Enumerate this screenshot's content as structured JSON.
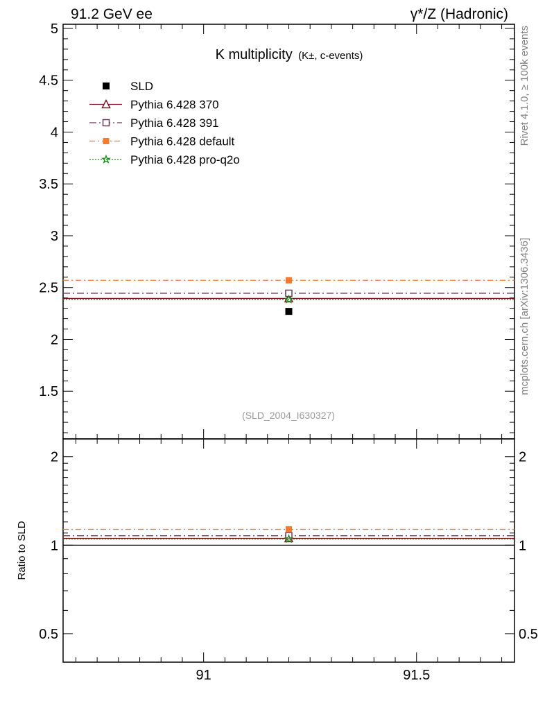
{
  "header": {
    "left": "91.2 GeV ee",
    "right": "γ*/Z (Hadronic)"
  },
  "side_labels": {
    "rivet": "Rivet 4.1.0, ≥ 100k events",
    "mcplots": "mcplots.cern.ch [arXiv:1306.3436]"
  },
  "chart_data": {
    "type": "scatter",
    "title_main": "K multiplicity",
    "title_sub": "(K±, c-events)",
    "analysis_label": "(SLD_2004_I630327)",
    "x": [
      91.2
    ],
    "xlim": [
      90.67,
      91.73
    ],
    "x_ticks": [
      "91",
      "91.5"
    ],
    "x_tick_values": [
      91,
      91.5
    ],
    "main": {
      "ylim": [
        1.04,
        5.04
      ],
      "y_ticks": [
        "1.5",
        "2",
        "2.5",
        "3",
        "3.5",
        "4",
        "4.5",
        "5"
      ],
      "y_tick_values": [
        1.5,
        2,
        2.5,
        3,
        3.5,
        4,
        4.5,
        5
      ]
    },
    "ratio": {
      "ylabel": "Ratio to SLD",
      "ylim": [
        0.4,
        2.3
      ],
      "log": true,
      "y_ticks": [
        "0.5",
        "1",
        "2"
      ],
      "y_tick_values": [
        0.5,
        1,
        2
      ]
    },
    "series": [
      {
        "name": "SLD",
        "values": [
          2.27
        ],
        "ratio": [
          1.0
        ],
        "color": "#000000",
        "marker": "filled-square",
        "dash": "none",
        "is_data": true
      },
      {
        "name": "Pythia 6.428 370",
        "values": [
          2.395
        ],
        "ratio": [
          1.055
        ],
        "color": "#7f1020",
        "marker": "open-triangle",
        "dash": "solid"
      },
      {
        "name": "Pythia 6.428 391",
        "values": [
          2.445
        ],
        "ratio": [
          1.077
        ],
        "color": "#6b3a5a",
        "marker": "open-square",
        "dash": "dashdot"
      },
      {
        "name": "Pythia 6.428 default",
        "values": [
          2.57
        ],
        "ratio": [
          1.132
        ],
        "color": "#f47a2e",
        "marker": "filled-square",
        "dash": "dashdot-orange"
      },
      {
        "name": "Pythia 6.428 pro-q2o",
        "values": [
          2.385
        ],
        "ratio": [
          1.05
        ],
        "color": "#1a8a1a",
        "marker": "open-star",
        "dash": "dotted"
      }
    ]
  }
}
